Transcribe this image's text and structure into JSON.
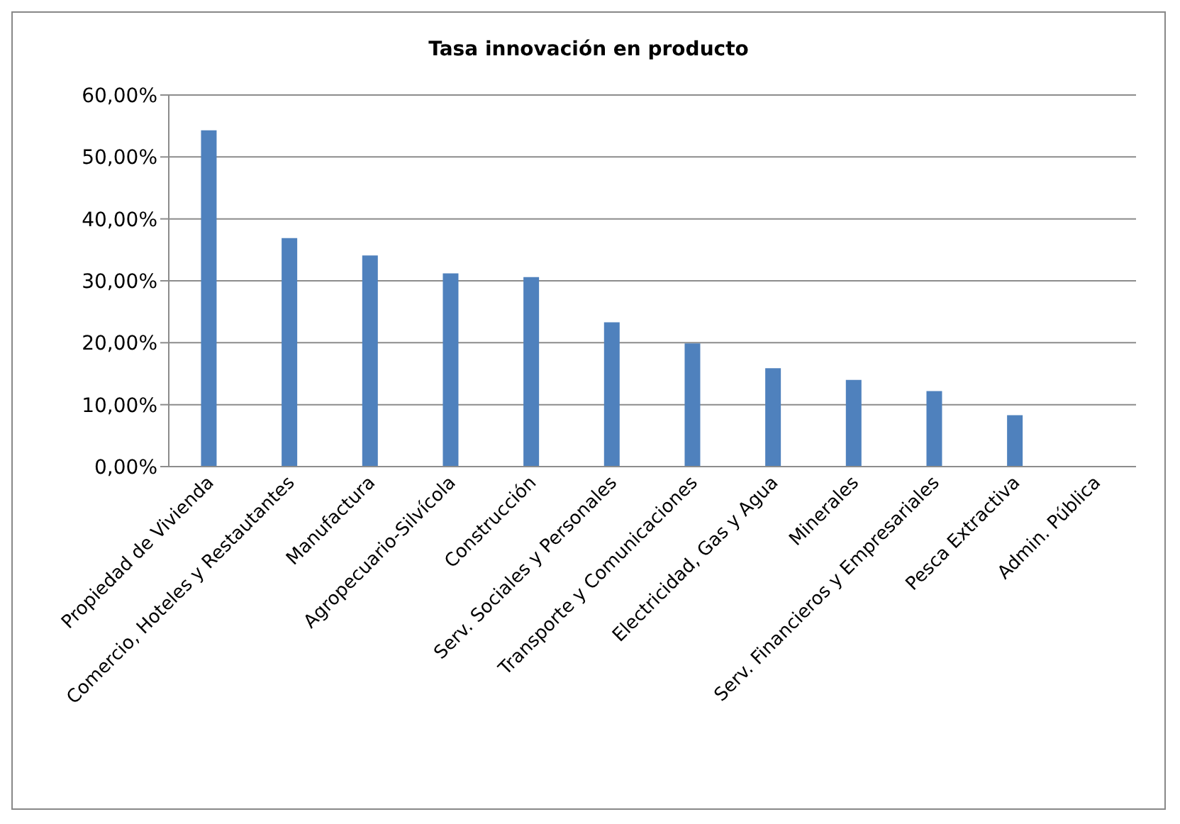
{
  "chart_data": {
    "type": "bar",
    "title": "Tasa innovación en producto",
    "categories": [
      "Propiedad de Vivienda",
      "Comercio, Hoteles y Restautantes",
      "Manufactura",
      "Agropecuario-Silvícola",
      "Construcción",
      "Serv. Sociales y Personales",
      "Transporte y Comunicaciones",
      "Electricidad, Gas y Agua",
      "Minerales",
      "Serv. Financieros y Empresariales",
      "Pesca Extractiva",
      "Admin. Pública"
    ],
    "values": [
      54.3,
      36.9,
      34.1,
      31.2,
      30.6,
      23.3,
      19.9,
      15.9,
      14.0,
      12.2,
      8.3,
      0
    ],
    "color": "#4f81bd",
    "ylim": [
      0,
      60
    ],
    "yticks": [
      {
        "value": 0,
        "label": "0,00%"
      },
      {
        "value": 10,
        "label": "10,00%"
      },
      {
        "value": 20,
        "label": "20,00%"
      },
      {
        "value": 30,
        "label": "30,00%"
      },
      {
        "value": 40,
        "label": "40,00%"
      },
      {
        "value": 50,
        "label": "50,00%"
      },
      {
        "value": 60,
        "label": "60,00%"
      }
    ],
    "grid": "y"
  }
}
